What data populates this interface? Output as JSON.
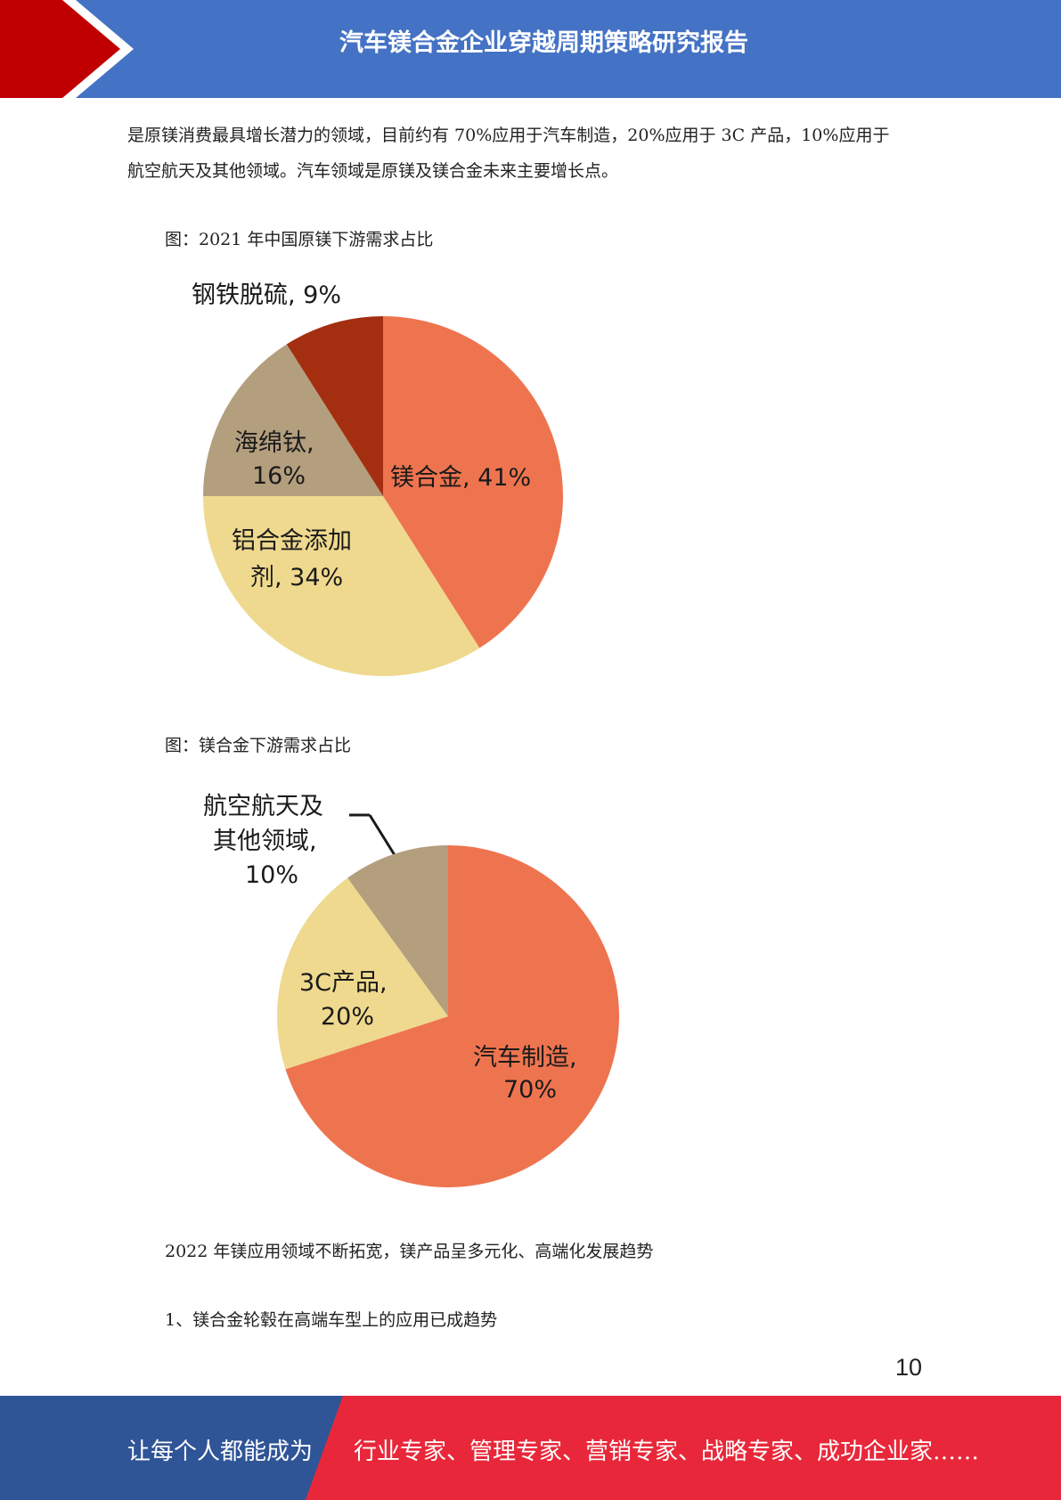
{
  "header": {
    "title": "汽车镁合金企业穿越周期策略研究报告"
  },
  "intro": {
    "line1": "是原镁消费最具增长潜力的领域，目前约有 70%应用于汽车制造，20%应用于 3C 产品，10%应用于",
    "line2": "航空航天及其他领域。汽车领域是原镁及镁合金未来主要增长点。"
  },
  "figure1": {
    "caption": "图：2021 年中国原镁下游需求占比"
  },
  "figure2": {
    "caption": "图：镁合金下游需求占比"
  },
  "chart_data": [
    {
      "type": "pie",
      "title": "",
      "slices": [
        {
          "label": "镁合金",
          "value": 41,
          "color": "#ee744f"
        },
        {
          "label": "铝合金添加剂",
          "value": 34,
          "color": "#efd98e"
        },
        {
          "label": "海绵钛",
          "value": 16,
          "color": "#b39e7e"
        },
        {
          "label": "钢铁脱硫",
          "value": 9,
          "color": "#a32f10"
        }
      ],
      "text_labels": {
        "s0": "镁合金, 41%",
        "s1a": "铝合金添加",
        "s1b": "剂, 34%",
        "s2a": "海绵钛,",
        "s2b": "16%",
        "s3": "钢铁脱硫, 9%"
      }
    },
    {
      "type": "pie",
      "title": "",
      "slices": [
        {
          "label": "汽车制造",
          "value": 70,
          "color": "#ee744f"
        },
        {
          "label": "3C产品",
          "value": 20,
          "color": "#efd98e"
        },
        {
          "label": "航空航天及其他领域",
          "value": 10,
          "color": "#b39e7e"
        }
      ],
      "text_labels": {
        "s0a": "汽车制造,",
        "s0b": "70%",
        "s1a": "3C产品,",
        "s1b": "20%",
        "s2a": "航空航天及",
        "s2b": "其他领域,",
        "s2c": "10%"
      }
    }
  ],
  "body": {
    "line1": "2022 年镁应用领域不断拓宽，镁产品呈多元化、高端化发展趋势",
    "line2": "1、镁合金轮毂在高端车型上的应用已成趋势"
  },
  "page_number": "10",
  "footer": {
    "left": "让每个人都能成为",
    "right": "行业专家、管理专家、营销专家、战略专家、成功企业家……"
  },
  "colors": {
    "header_blue": "#4472c4",
    "accent_red": "#c00000",
    "footer_blue": "#2f5597",
    "footer_red": "#e8283a"
  }
}
